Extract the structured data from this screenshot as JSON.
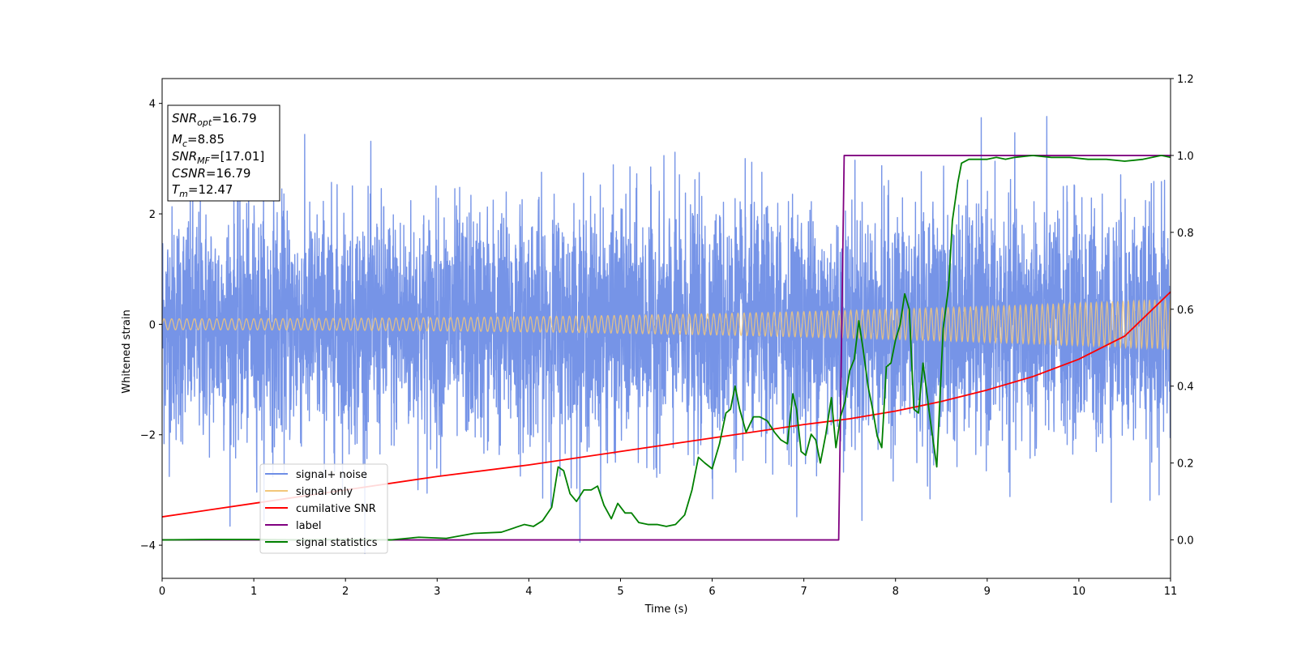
{
  "chart_data": {
    "type": "line",
    "title": "",
    "xlabel": "Time (s)",
    "ylabel": "Whitened strain",
    "xlim": [
      0,
      11
    ],
    "ylim_left": [
      -4.6,
      4.45
    ],
    "ylim_right": [
      -0.1,
      1.2
    ],
    "x_ticks": [
      "0",
      "1",
      "2",
      "3",
      "4",
      "5",
      "6",
      "7",
      "8",
      "9",
      "10",
      "11"
    ],
    "y_ticks_left": [
      "−4",
      "−2",
      "0",
      "2",
      "4"
    ],
    "y_ticks_right": [
      "0.0",
      "0.2",
      "0.4",
      "0.6",
      "0.8",
      "1.0",
      "1.2"
    ],
    "grid": false,
    "legend_position": "lower-left",
    "info_box": {
      "snr_opt": {
        "sym": "SNR",
        "sub": "opt",
        "value": "=16.79"
      },
      "mc": {
        "sym": "M",
        "sub": "c",
        "value": "=8.85"
      },
      "snr_mf": {
        "sym": "SNR",
        "sub": "MF",
        "value": "=[17.01]"
      },
      "csnr": {
        "sym": "CSNR",
        "sub": "",
        "value": "=16.79"
      },
      "tm": {
        "sym": "T",
        "sub": "m",
        "value": "=12.47"
      }
    },
    "series": [
      {
        "name": "signal+ noise",
        "axis": "left",
        "color": "#6f8ee6",
        "style": "noise",
        "noise_sigma": 1.05,
        "noise_max": 4.05,
        "noise_min": -4.15
      },
      {
        "name": "signal only",
        "axis": "left",
        "color": "#f2c77a",
        "style": "chirp",
        "amp_start": 0.1,
        "amp_end": 0.45
      },
      {
        "name": "cumilative SNR",
        "axis": "right",
        "color": "#ff0000",
        "x": [
          0,
          1,
          2,
          3,
          4,
          5,
          6,
          7,
          7.5,
          8,
          8.5,
          9,
          9.5,
          10,
          10.5,
          11
        ],
        "y": [
          0.06,
          0.095,
          0.13,
          0.165,
          0.195,
          0.23,
          0.265,
          0.3,
          0.315,
          0.335,
          0.36,
          0.39,
          0.425,
          0.47,
          0.53,
          0.645
        ]
      },
      {
        "name": "label",
        "axis": "right",
        "color": "#800080",
        "x": [
          0,
          7.38,
          7.44,
          11
        ],
        "y": [
          0,
          0,
          1,
          1
        ]
      },
      {
        "name": "signal statistics",
        "axis": "right",
        "color": "#008000",
        "x": [
          0,
          0.5,
          1,
          1.5,
          2,
          2.5,
          2.8,
          3.1,
          3.4,
          3.7,
          3.95,
          4.05,
          4.15,
          4.25,
          4.32,
          4.38,
          4.45,
          4.52,
          4.6,
          4.68,
          4.75,
          4.82,
          4.9,
          4.97,
          5.05,
          5.12,
          5.2,
          5.3,
          5.4,
          5.5,
          5.6,
          5.7,
          5.78,
          5.85,
          5.92,
          6.0,
          6.08,
          6.15,
          6.2,
          6.25,
          6.3,
          6.37,
          6.45,
          6.52,
          6.6,
          6.68,
          6.75,
          6.82,
          6.88,
          6.92,
          6.97,
          7.02,
          7.08,
          7.13,
          7.18,
          7.24,
          7.3,
          7.35,
          7.4,
          7.45,
          7.5,
          7.55,
          7.6,
          7.65,
          7.7,
          7.75,
          7.8,
          7.85,
          7.9,
          7.95,
          8.0,
          8.05,
          8.1,
          8.15,
          8.2,
          8.25,
          8.3,
          8.38,
          8.45,
          8.52,
          8.58,
          8.62,
          8.68,
          8.72,
          8.8,
          8.9,
          9.0,
          9.1,
          9.2,
          9.3,
          9.5,
          9.7,
          9.9,
          10.1,
          10.3,
          10.5,
          10.7,
          10.9,
          11.0
        ],
        "y": [
          0.0,
          0.001,
          0.001,
          0.0,
          0.001,
          0.0,
          0.007,
          0.004,
          0.017,
          0.02,
          0.04,
          0.035,
          0.05,
          0.085,
          0.19,
          0.18,
          0.12,
          0.1,
          0.13,
          0.13,
          0.14,
          0.09,
          0.055,
          0.095,
          0.07,
          0.07,
          0.045,
          0.04,
          0.04,
          0.035,
          0.04,
          0.065,
          0.13,
          0.215,
          0.2,
          0.185,
          0.25,
          0.33,
          0.34,
          0.4,
          0.34,
          0.28,
          0.32,
          0.32,
          0.31,
          0.28,
          0.26,
          0.25,
          0.38,
          0.34,
          0.23,
          0.22,
          0.275,
          0.26,
          0.2,
          0.275,
          0.37,
          0.24,
          0.32,
          0.36,
          0.44,
          0.47,
          0.57,
          0.49,
          0.4,
          0.34,
          0.27,
          0.24,
          0.45,
          0.46,
          0.52,
          0.56,
          0.64,
          0.6,
          0.34,
          0.33,
          0.46,
          0.31,
          0.19,
          0.55,
          0.66,
          0.83,
          0.93,
          0.98,
          0.99,
          0.99,
          0.99,
          0.995,
          0.99,
          0.995,
          1.0,
          0.995,
          0.995,
          0.99,
          0.99,
          0.985,
          0.99,
          1.0,
          0.995
        ]
      }
    ]
  }
}
